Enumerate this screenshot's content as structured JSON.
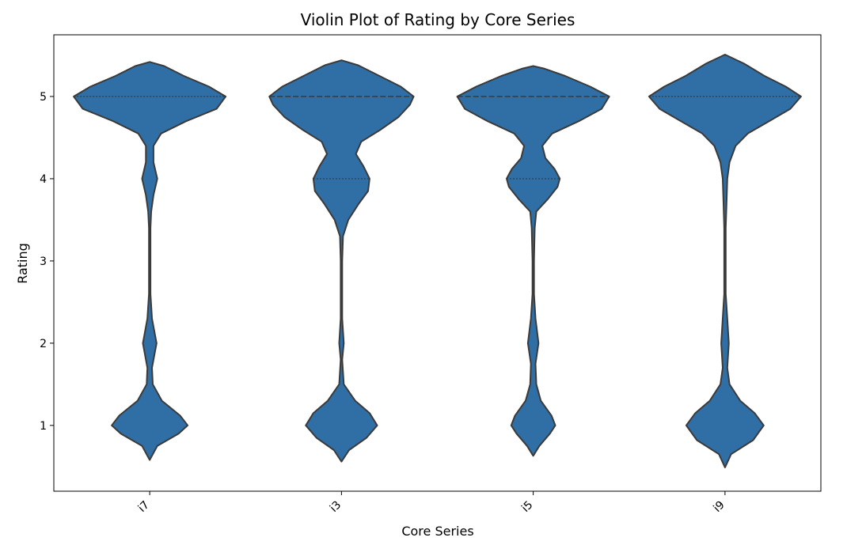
{
  "chart_data": {
    "type": "violin",
    "title": "Violin Plot of Rating by Core Series",
    "xlabel": "Core Series",
    "ylabel": "Rating",
    "categories": [
      "i7",
      "i3",
      "i5",
      "i9"
    ],
    "yticks": [
      1,
      2,
      3,
      4,
      5
    ],
    "ylim": [
      0.2,
      5.75
    ],
    "grid": false,
    "legend": "none",
    "fill_color": "#2f6fa6",
    "edge_color": "#3a3a3a",
    "violins": [
      {
        "category": "i7",
        "min": 0.58,
        "max": 5.42,
        "quartiles": [
          5,
          5,
          5
        ],
        "profile": [
          [
            0.58,
            0.0
          ],
          [
            0.75,
            0.1
          ],
          [
            0.9,
            0.38
          ],
          [
            1.0,
            0.5
          ],
          [
            1.12,
            0.4
          ],
          [
            1.3,
            0.16
          ],
          [
            1.5,
            0.04
          ],
          [
            1.7,
            0.03
          ],
          [
            2.0,
            0.09
          ],
          [
            2.3,
            0.03
          ],
          [
            2.6,
            0.01
          ],
          [
            3.0,
            0.01
          ],
          [
            3.4,
            0.01
          ],
          [
            3.6,
            0.02
          ],
          [
            3.8,
            0.05
          ],
          [
            4.0,
            0.1
          ],
          [
            4.2,
            0.05
          ],
          [
            4.4,
            0.05
          ],
          [
            4.55,
            0.15
          ],
          [
            4.7,
            0.48
          ],
          [
            4.85,
            0.88
          ],
          [
            5.0,
            1.0
          ],
          [
            5.12,
            0.78
          ],
          [
            5.25,
            0.45
          ],
          [
            5.37,
            0.19
          ],
          [
            5.42,
            0.0
          ]
        ]
      },
      {
        "category": "i3",
        "min": 0.56,
        "max": 5.44,
        "quartiles": [
          4,
          5,
          5
        ],
        "profile": [
          [
            0.56,
            0.0
          ],
          [
            0.7,
            0.1
          ],
          [
            0.85,
            0.33
          ],
          [
            1.0,
            0.47
          ],
          [
            1.15,
            0.37
          ],
          [
            1.3,
            0.18
          ],
          [
            1.5,
            0.03
          ],
          [
            1.8,
            0.01
          ],
          [
            2.0,
            0.03
          ],
          [
            2.3,
            0.01
          ],
          [
            2.6,
            0.01
          ],
          [
            3.0,
            0.01
          ],
          [
            3.3,
            0.02
          ],
          [
            3.5,
            0.09
          ],
          [
            3.7,
            0.23
          ],
          [
            3.85,
            0.35
          ],
          [
            4.0,
            0.37
          ],
          [
            4.15,
            0.29
          ],
          [
            4.3,
            0.19
          ],
          [
            4.45,
            0.26
          ],
          [
            4.6,
            0.52
          ],
          [
            4.75,
            0.75
          ],
          [
            4.9,
            0.9
          ],
          [
            5.0,
            0.95
          ],
          [
            5.12,
            0.78
          ],
          [
            5.25,
            0.5
          ],
          [
            5.38,
            0.22
          ],
          [
            5.44,
            0.0
          ]
        ]
      },
      {
        "category": "i5",
        "min": 0.63,
        "max": 5.37,
        "quartiles": [
          4,
          5,
          5
        ],
        "profile": [
          [
            0.63,
            0.0
          ],
          [
            0.75,
            0.08
          ],
          [
            0.9,
            0.22
          ],
          [
            1.0,
            0.29
          ],
          [
            1.12,
            0.24
          ],
          [
            1.3,
            0.1
          ],
          [
            1.5,
            0.04
          ],
          [
            1.75,
            0.03
          ],
          [
            2.0,
            0.07
          ],
          [
            2.3,
            0.03
          ],
          [
            2.6,
            0.01
          ],
          [
            3.0,
            0.01
          ],
          [
            3.4,
            0.02
          ],
          [
            3.6,
            0.04
          ],
          [
            3.75,
            0.19
          ],
          [
            3.9,
            0.32
          ],
          [
            4.0,
            0.35
          ],
          [
            4.12,
            0.28
          ],
          [
            4.25,
            0.16
          ],
          [
            4.4,
            0.12
          ],
          [
            4.55,
            0.25
          ],
          [
            4.7,
            0.6
          ],
          [
            4.85,
            0.9
          ],
          [
            5.0,
            1.0
          ],
          [
            5.12,
            0.75
          ],
          [
            5.25,
            0.42
          ],
          [
            5.34,
            0.14
          ],
          [
            5.37,
            0.0
          ]
        ]
      },
      {
        "category": "i9",
        "min": 0.49,
        "max": 5.51,
        "quartiles": [
          5,
          5,
          5
        ],
        "profile": [
          [
            0.49,
            0.0
          ],
          [
            0.65,
            0.08
          ],
          [
            0.82,
            0.37
          ],
          [
            1.0,
            0.51
          ],
          [
            1.15,
            0.39
          ],
          [
            1.3,
            0.2
          ],
          [
            1.5,
            0.06
          ],
          [
            1.7,
            0.03
          ],
          [
            2.0,
            0.05
          ],
          [
            2.3,
            0.03
          ],
          [
            2.6,
            0.01
          ],
          [
            3.0,
            0.01
          ],
          [
            3.4,
            0.01
          ],
          [
            3.7,
            0.02
          ],
          [
            4.0,
            0.03
          ],
          [
            4.2,
            0.06
          ],
          [
            4.4,
            0.14
          ],
          [
            4.55,
            0.3
          ],
          [
            4.7,
            0.58
          ],
          [
            4.85,
            0.86
          ],
          [
            5.0,
            1.0
          ],
          [
            5.12,
            0.8
          ],
          [
            5.25,
            0.52
          ],
          [
            5.4,
            0.25
          ],
          [
            5.51,
            0.0
          ]
        ]
      }
    ]
  }
}
